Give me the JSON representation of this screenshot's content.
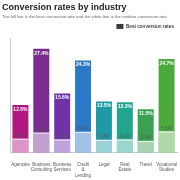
{
  "chart_data": {
    "type": "bar",
    "title": "Conversion rates by industry",
    "subtitle": "The full bar is the best conversion rate and the white line is the median conversion rate",
    "categories": [
      "Agencies",
      "Business Consulting",
      "Business Services",
      "Credit & Lending",
      "Legal",
      "Real Estate",
      "Travel",
      "Vocational Studies"
    ],
    "series": [
      {
        "name": "Best conversion rates",
        "colors": [
          "#b0177f",
          "#7b2c91",
          "#6f33a8",
          "#2a78c8",
          "#1e9aa6",
          "#22a58e",
          "#3aa052",
          "#4caa3c"
        ],
        "values": [
          12.6,
          27.4,
          15.6,
          24.3,
          13.5,
          13.3,
          11.5,
          24.7
        ],
        "value_labels": [
          "12.6%",
          "27.4%",
          "15.6%",
          "24.3%",
          "13.5%",
          "13.3%",
          "11.5%",
          "24.7%"
        ],
        "median": [
          3.6,
          5.2,
          3.4,
          5.4,
          3.3,
          3.4,
          3.0,
          5.5
        ],
        "median_labels": [
          "3.6%",
          "5.2%",
          "3.4%",
          "5.4%",
          "3.3%",
          "3.4%",
          "3.0%",
          "5.5%"
        ]
      }
    ],
    "ylim": [
      0,
      30
    ],
    "grid": false,
    "legend": "top-right",
    "data_labels": true,
    "tick_labels": "x"
  }
}
